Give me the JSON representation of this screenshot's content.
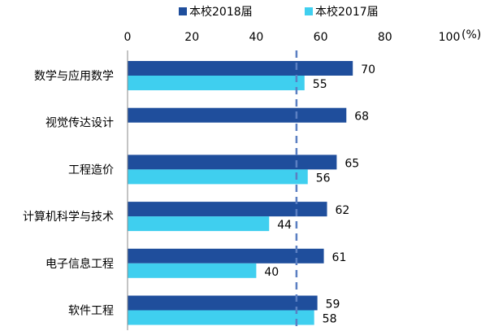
{
  "chart_data": {
    "type": "bar",
    "orientation": "horizontal",
    "categories": [
      "数学与应用数学",
      "视觉传达设计",
      "工程造价",
      "计算机科学与技术",
      "电子信息工程",
      "软件工程"
    ],
    "series": [
      {
        "name": "本校2018届",
        "color": "#1f4e9c",
        "values": [
          70,
          68,
          65,
          62,
          61,
          59
        ]
      },
      {
        "name": "本校2017届",
        "color": "#3fcfef",
        "values": [
          55,
          null,
          56,
          44,
          40,
          58
        ]
      }
    ],
    "x_ticks": [
      "0",
      "20",
      "40",
      "60",
      "80",
      "100"
    ],
    "x_unit": "(%)",
    "xlim": [
      0,
      100
    ],
    "reference_line": {
      "value": 52.5,
      "style": "dashed",
      "color": "#5b7fc2"
    },
    "axis_position": "top",
    "legend_position": "top-right",
    "grid": false
  }
}
